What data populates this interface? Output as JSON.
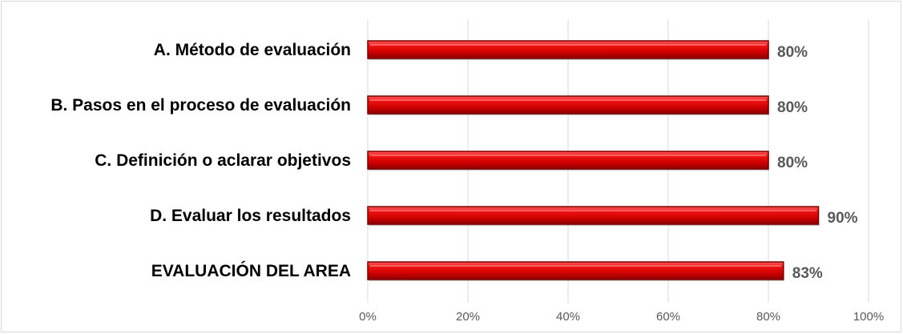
{
  "chart_data": {
    "type": "bar",
    "orientation": "horizontal",
    "categories": [
      "A. Método de evaluación",
      "B.  Pasos en el proceso de evaluación",
      "C.  Definición o aclarar objetivos",
      "D.  Evaluar los resultados",
      "EVALUACIÓN DEL AREA"
    ],
    "values": [
      80,
      80,
      80,
      90,
      83
    ],
    "data_labels": [
      "80%",
      "80%",
      "80%",
      "90%",
      "83%"
    ],
    "xlim": [
      0,
      100
    ],
    "x_ticks": [
      0,
      20,
      40,
      60,
      80,
      100
    ],
    "x_tick_labels": [
      "0%",
      "20%",
      "40%",
      "60%",
      "80%",
      "100%"
    ],
    "title": "",
    "xlabel": "",
    "ylabel": "",
    "grid": "vertical",
    "legend": "none",
    "bar_color": "#e00000",
    "bar_edge_color": "#7a0000"
  }
}
